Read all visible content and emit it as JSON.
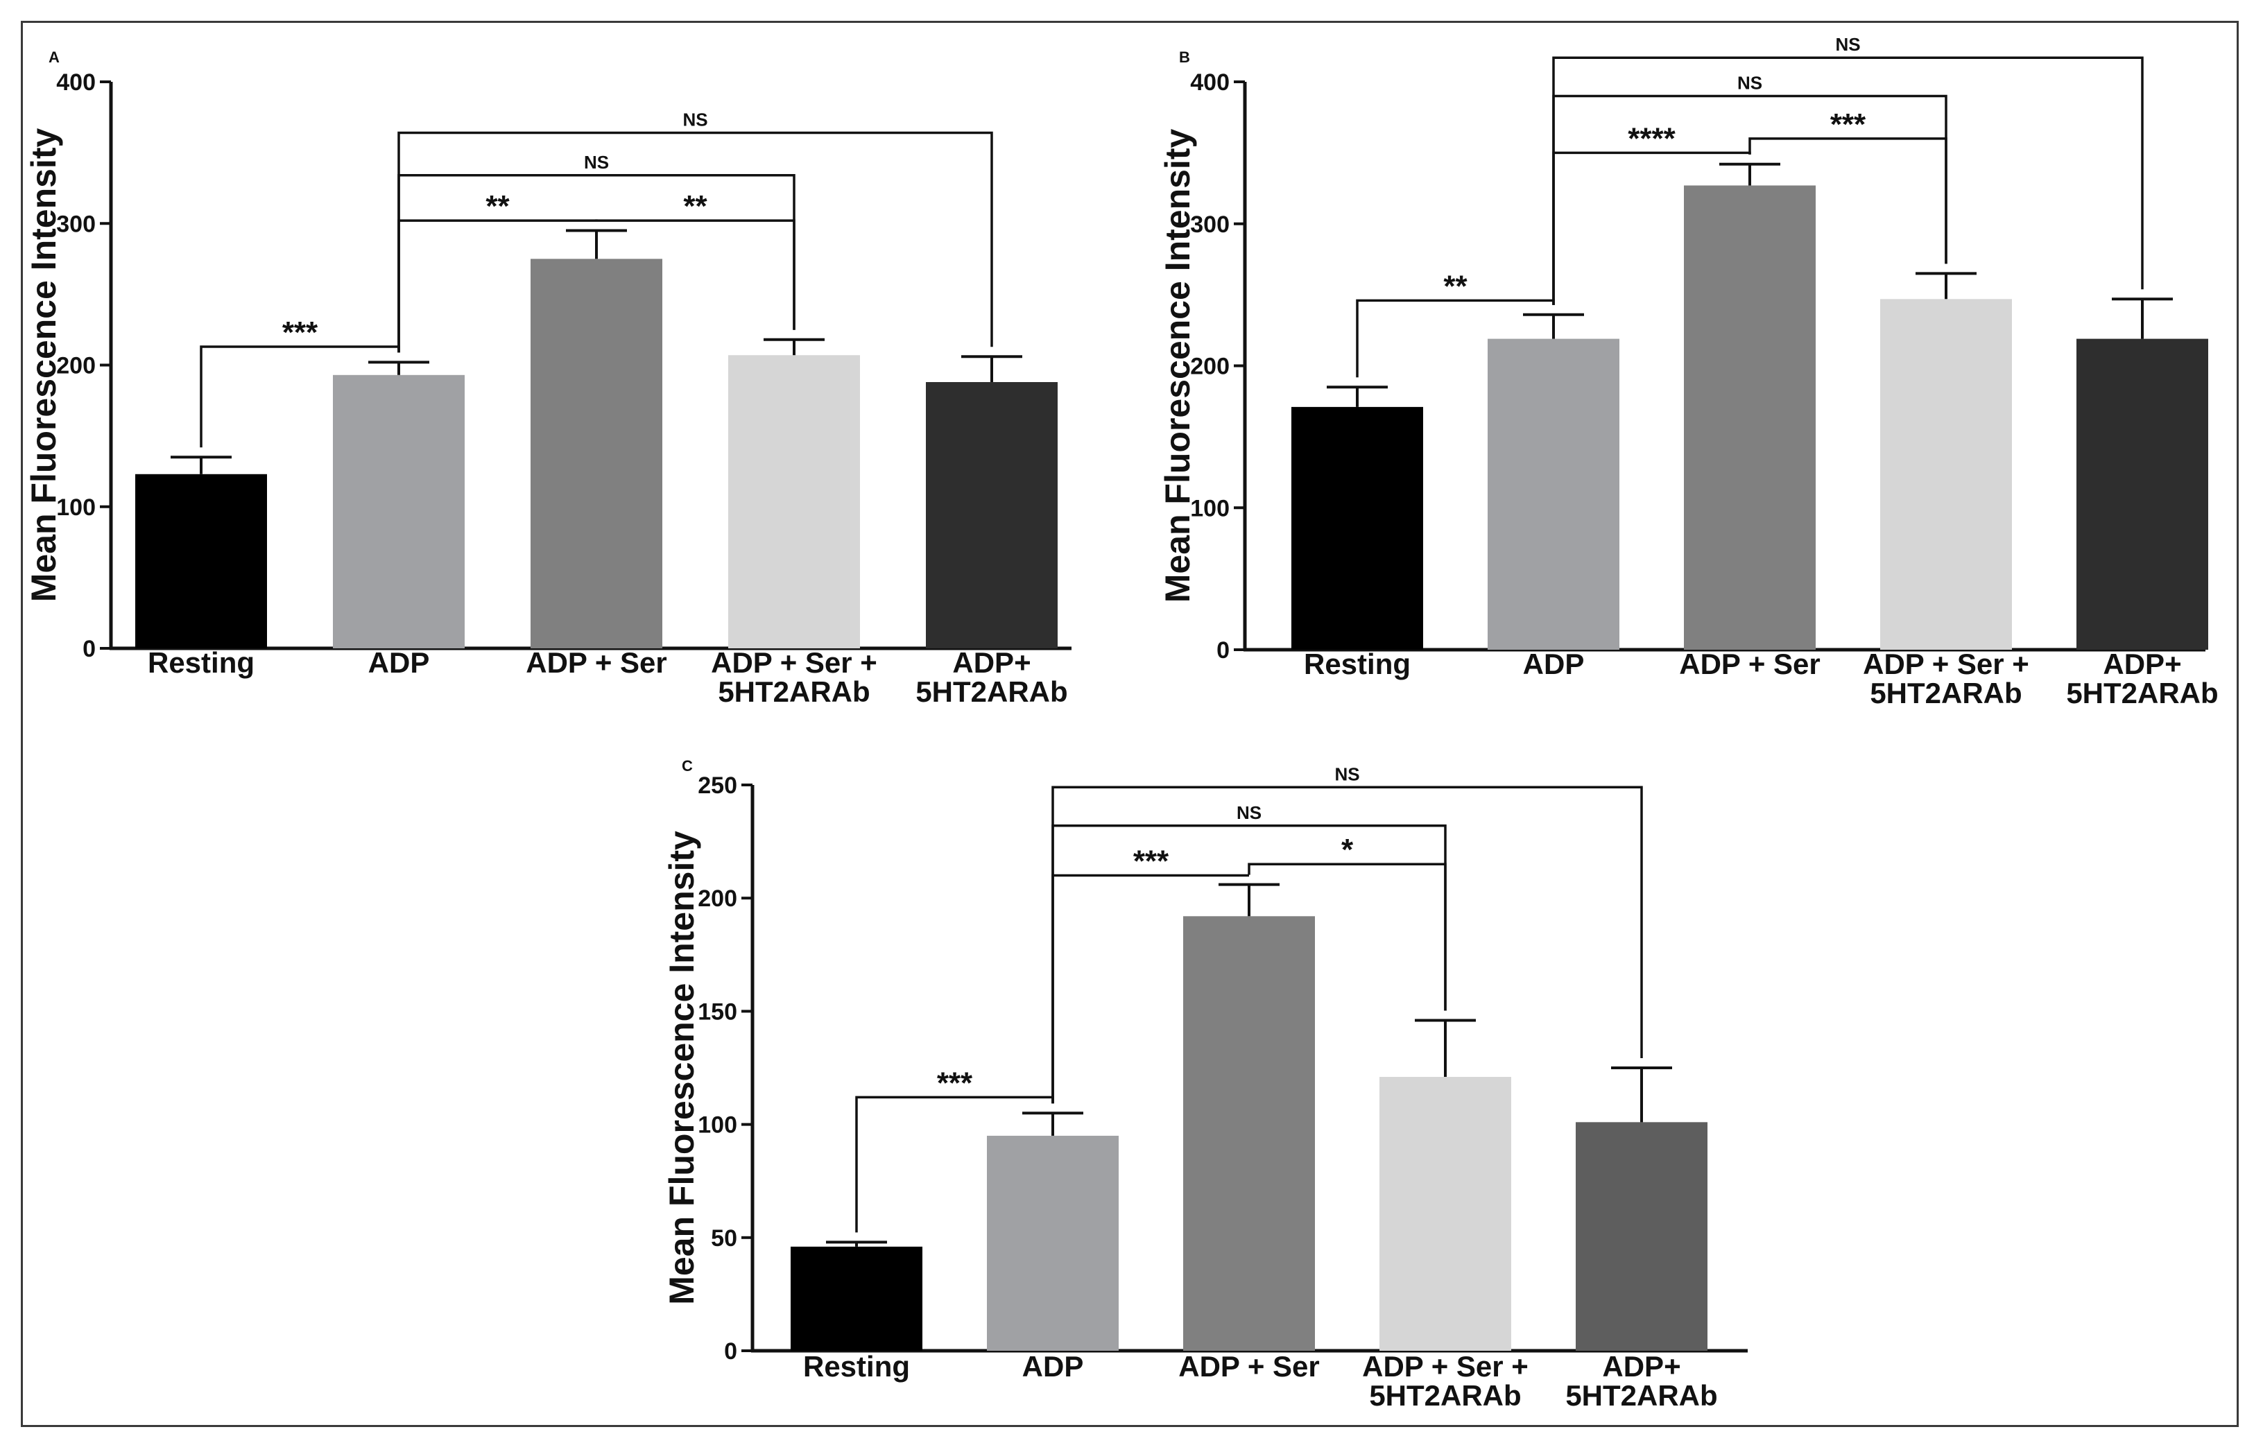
{
  "figure": {
    "ylabel": "Mean Fluorescence Intensity"
  },
  "chart_data": [
    {
      "panel": "A",
      "type": "bar",
      "ylabel": "Mean Fluorescence Intensity",
      "ylim": [
        0,
        400
      ],
      "yticks": [
        0,
        100,
        200,
        300,
        400
      ],
      "categories": [
        {
          "line1": "Resting",
          "line2": ""
        },
        {
          "line1": "ADP",
          "line2": ""
        },
        {
          "line1": "ADP + Ser",
          "line2": ""
        },
        {
          "line1": "ADP + Ser +",
          "line2": "5HT2ARAb"
        },
        {
          "line1": "ADP+",
          "line2": "5HT2ARAb"
        }
      ],
      "values": [
        123,
        193,
        275,
        207,
        188
      ],
      "errors": [
        12,
        9,
        20,
        11,
        18
      ],
      "colors": [
        "#000000",
        "#a0a1a4",
        "#808080",
        "#d6d6d6",
        "#2e2e2e"
      ],
      "comparisons": [
        {
          "from": 0,
          "to": 1,
          "label": "***",
          "level": 213
        },
        {
          "from": 1,
          "to": 2,
          "label": "**",
          "level": 302
        },
        {
          "from": 2,
          "to": 3,
          "label": "**",
          "level": 302
        },
        {
          "from": 1,
          "to": 3,
          "label": "NS",
          "level": 334
        },
        {
          "from": 1,
          "to": 4,
          "label": "NS",
          "level": 364
        }
      ]
    },
    {
      "panel": "B",
      "type": "bar",
      "ylabel": "Mean Fluorescence Intensity",
      "ylim": [
        0,
        400
      ],
      "yticks": [
        0,
        100,
        200,
        300,
        400
      ],
      "categories": [
        {
          "line1": "Resting",
          "line2": ""
        },
        {
          "line1": "ADP",
          "line2": ""
        },
        {
          "line1": "ADP + Ser",
          "line2": ""
        },
        {
          "line1": "ADP + Ser +",
          "line2": "5HT2ARAb"
        },
        {
          "line1": "ADP+",
          "line2": "5HT2ARAb"
        }
      ],
      "values": [
        171,
        219,
        327,
        247,
        219
      ],
      "errors": [
        14,
        17,
        15,
        18,
        28
      ],
      "colors": [
        "#000000",
        "#a0a1a4",
        "#808080",
        "#d6d6d6",
        "#2e2e2e"
      ],
      "comparisons": [
        {
          "from": 0,
          "to": 1,
          "label": "**",
          "level": 246
        },
        {
          "from": 1,
          "to": 2,
          "label": "****",
          "level": 350
        },
        {
          "from": 2,
          "to": 3,
          "label": "***",
          "level": 360
        },
        {
          "from": 1,
          "to": 3,
          "label": "NS",
          "level": 390
        },
        {
          "from": 1,
          "to": 4,
          "label": "NS",
          "level": 417
        }
      ]
    },
    {
      "panel": "C",
      "type": "bar",
      "ylabel": "Mean Fluorescence Intensity",
      "ylim": [
        0,
        250
      ],
      "yticks": [
        0,
        50,
        100,
        150,
        200,
        250
      ],
      "categories": [
        {
          "line1": "Resting",
          "line2": ""
        },
        {
          "line1": "ADP",
          "line2": ""
        },
        {
          "line1": "ADP + Ser",
          "line2": ""
        },
        {
          "line1": "ADP + Ser +",
          "line2": "5HT2ARAb"
        },
        {
          "line1": "ADP+",
          "line2": "5HT2ARAb"
        }
      ],
      "values": [
        46,
        95,
        192,
        121,
        101
      ],
      "errors": [
        2,
        10,
        14,
        25,
        24
      ],
      "colors": [
        "#000000",
        "#a0a1a4",
        "#808080",
        "#d6d6d6",
        "#5e5e5e"
      ],
      "comparisons": [
        {
          "from": 0,
          "to": 1,
          "label": "***",
          "level": 112
        },
        {
          "from": 1,
          "to": 2,
          "label": "***",
          "level": 210
        },
        {
          "from": 2,
          "to": 3,
          "label": "*",
          "level": 215
        },
        {
          "from": 1,
          "to": 3,
          "label": "NS",
          "level": 232
        },
        {
          "from": 1,
          "to": 4,
          "label": "NS",
          "level": 249
        }
      ]
    }
  ]
}
